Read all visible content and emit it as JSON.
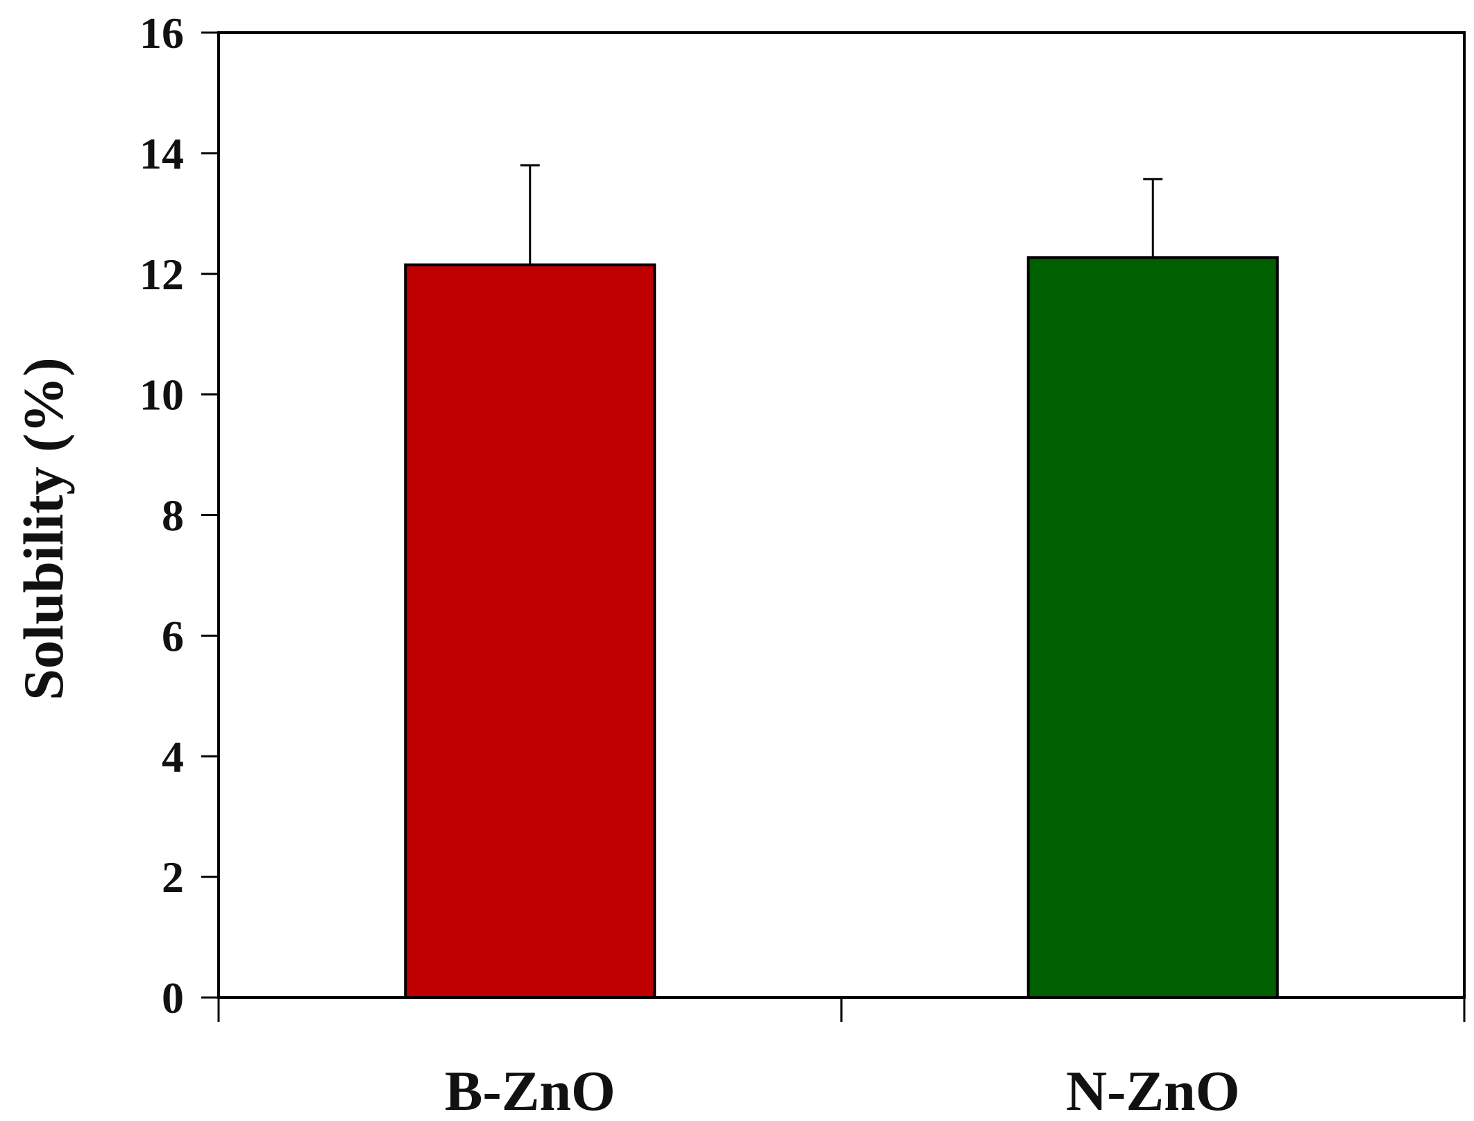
{
  "chart_data": {
    "type": "bar",
    "title": "",
    "xlabel": "",
    "ylabel": "Solubility (%)",
    "ylim": [
      0,
      16
    ],
    "yticks": [
      0,
      2,
      4,
      6,
      8,
      10,
      12,
      14,
      16
    ],
    "categories": [
      "B-ZnO",
      "N-ZnO"
    ],
    "values": [
      12.15,
      12.27
    ],
    "errors": [
      1.65,
      1.3
    ],
    "colors": [
      "#c00000",
      "#006000"
    ],
    "grid": false,
    "legend": "none"
  }
}
